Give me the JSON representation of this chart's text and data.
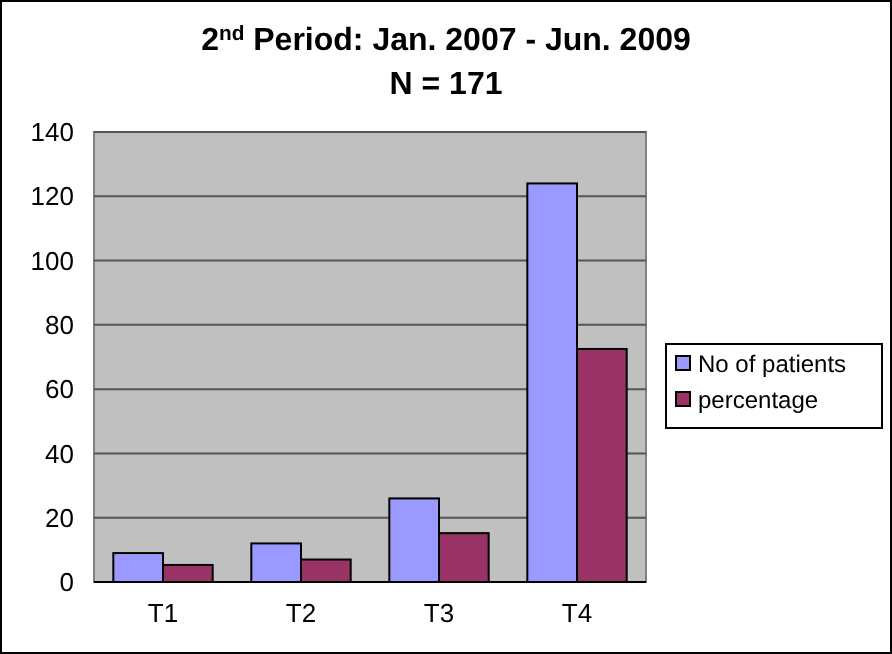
{
  "chart_data": {
    "type": "bar",
    "title": "2$^{nd}$ Period: Jan. 2007 - Jun. 2009",
    "subtitle": "N = 171",
    "categories": [
      "T1",
      "T2",
      "T3",
      "T4"
    ],
    "series": [
      {
        "name": "No of patients",
        "color": "#9999ff",
        "values": [
          9,
          12,
          26,
          124
        ]
      },
      {
        "name": "percentage",
        "color": "#993366",
        "values": [
          5.3,
          7,
          15.2,
          72.5
        ]
      }
    ],
    "ylim": [
      0,
      140
    ],
    "yticks": [
      0,
      20,
      40,
      60,
      80,
      100,
      120,
      140
    ],
    "grid": "y",
    "legend": "right"
  }
}
